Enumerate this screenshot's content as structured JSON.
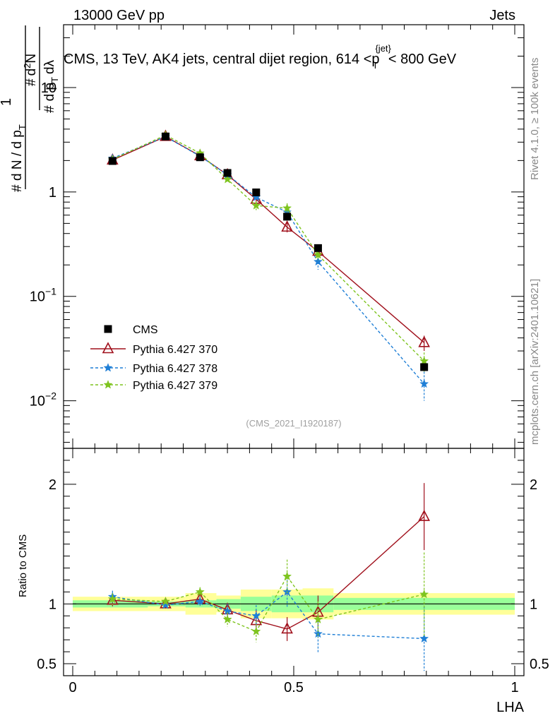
{
  "header": {
    "energy_label": "13000 GeV pp",
    "process_label": "Jets"
  },
  "side_text": {
    "rivet_label": "Rivet 4.1.0, ≥ 100k events",
    "mcplots_label": "mcplots.cern.ch [arXiv:2401.10621]"
  },
  "chart_data": {
    "type": "scatter",
    "title": "CMS, 13 TeV, AK4 jets, central dijet region, 614 < pT^jet < 800 GeV",
    "title_parts": {
      "pre": "CMS, 13 TeV, AK4 jets, central dijet region, 614 <",
      "sym": "p",
      "sub": "T",
      "sup": "{jet}",
      "post": "< 800 GeV"
    },
    "analysis_id": "(CMS_2021_I1920187)",
    "xlabel": "LHA",
    "ylabel_main": "1/(dN/dpT) d²N/(dpT dλ)",
    "ylabel_ratio": "Ratio to CMS",
    "xlim": [
      0,
      1
    ],
    "ylim_main_log": [
      0.0035,
      40
    ],
    "ylim_ratio": [
      0.4,
      2.3
    ],
    "x_ticks": [
      "0",
      "0.5",
      "1"
    ],
    "y_ticks_main": [
      "10^-2",
      "10^-1",
      "1",
      "10"
    ],
    "y_ticks_ratio": [
      "0.5",
      "1",
      "2"
    ],
    "legend_position": "lower-left",
    "bins": [
      {
        "x": 0.09,
        "lo": 0.0,
        "hi": 0.17
      },
      {
        "x": 0.21,
        "lo": 0.17,
        "hi": 0.255
      },
      {
        "x": 0.288,
        "lo": 0.255,
        "hi": 0.325
      },
      {
        "x": 0.35,
        "lo": 0.325,
        "hi": 0.38
      },
      {
        "x": 0.415,
        "lo": 0.38,
        "hi": 0.45
      },
      {
        "x": 0.485,
        "lo": 0.45,
        "hi": 0.52
      },
      {
        "x": 0.555,
        "lo": 0.52,
        "hi": 0.59
      },
      {
        "x": 0.795,
        "lo": 0.59,
        "hi": 1.0
      }
    ],
    "data": {
      "name": "CMS",
      "y": [
        1.98,
        3.4,
        2.15,
        1.52,
        0.99,
        0.58,
        0.29,
        0.021
      ],
      "band_stat": [
        0.03,
        0.02,
        0.03,
        0.04,
        0.06,
        0.07,
        0.07,
        0.05
      ],
      "band_total": [
        0.06,
        0.06,
        0.09,
        0.07,
        0.12,
        0.12,
        0.13,
        0.09
      ]
    },
    "series": [
      {
        "name": "Pythia 6.427 370",
        "color": "#a0101c",
        "marker": "triangle",
        "dashed": false,
        "y": [
          2.02,
          3.4,
          2.22,
          1.46,
          0.85,
          0.46,
          0.27,
          0.036
        ],
        "yerr": [
          0.06,
          0.08,
          0.06,
          0.05,
          0.06,
          0.05,
          0.03,
          0.006
        ],
        "ratio": [
          1.03,
          1.0,
          1.04,
          0.95,
          0.86,
          0.79,
          0.93,
          1.73
        ],
        "ratio_err": [
          0.05,
          0.03,
          0.04,
          0.06,
          0.09,
          0.1,
          0.14,
          0.28
        ]
      },
      {
        "name": "Pythia 6.427 378",
        "color": "#1f7fd6",
        "marker": "star",
        "dashed": true,
        "y": [
          2.1,
          3.38,
          2.2,
          1.46,
          0.89,
          0.64,
          0.215,
          0.0145
        ],
        "yerr": [
          0.06,
          0.08,
          0.06,
          0.05,
          0.07,
          0.07,
          0.035,
          0.0045
        ],
        "ratio": [
          1.06,
          0.99,
          1.02,
          0.94,
          0.9,
          1.1,
          0.75,
          0.71
        ],
        "ratio_err": [
          0.05,
          0.03,
          0.04,
          0.06,
          0.09,
          0.13,
          0.16,
          0.27
        ]
      },
      {
        "name": "Pythia 6.427 379",
        "color": "#7ec41f",
        "marker": "star",
        "dashed": true,
        "y": [
          2.05,
          3.5,
          2.35,
          1.32,
          0.74,
          0.7,
          0.25,
          0.024
        ],
        "yerr": [
          0.06,
          0.08,
          0.07,
          0.05,
          0.07,
          0.08,
          0.03,
          0.005
        ],
        "ratio": [
          1.04,
          1.02,
          1.1,
          0.87,
          0.77,
          1.23,
          0.87,
          1.08
        ],
        "ratio_err": [
          0.05,
          0.03,
          0.04,
          0.06,
          0.09,
          0.14,
          0.15,
          0.35
        ]
      }
    ]
  }
}
